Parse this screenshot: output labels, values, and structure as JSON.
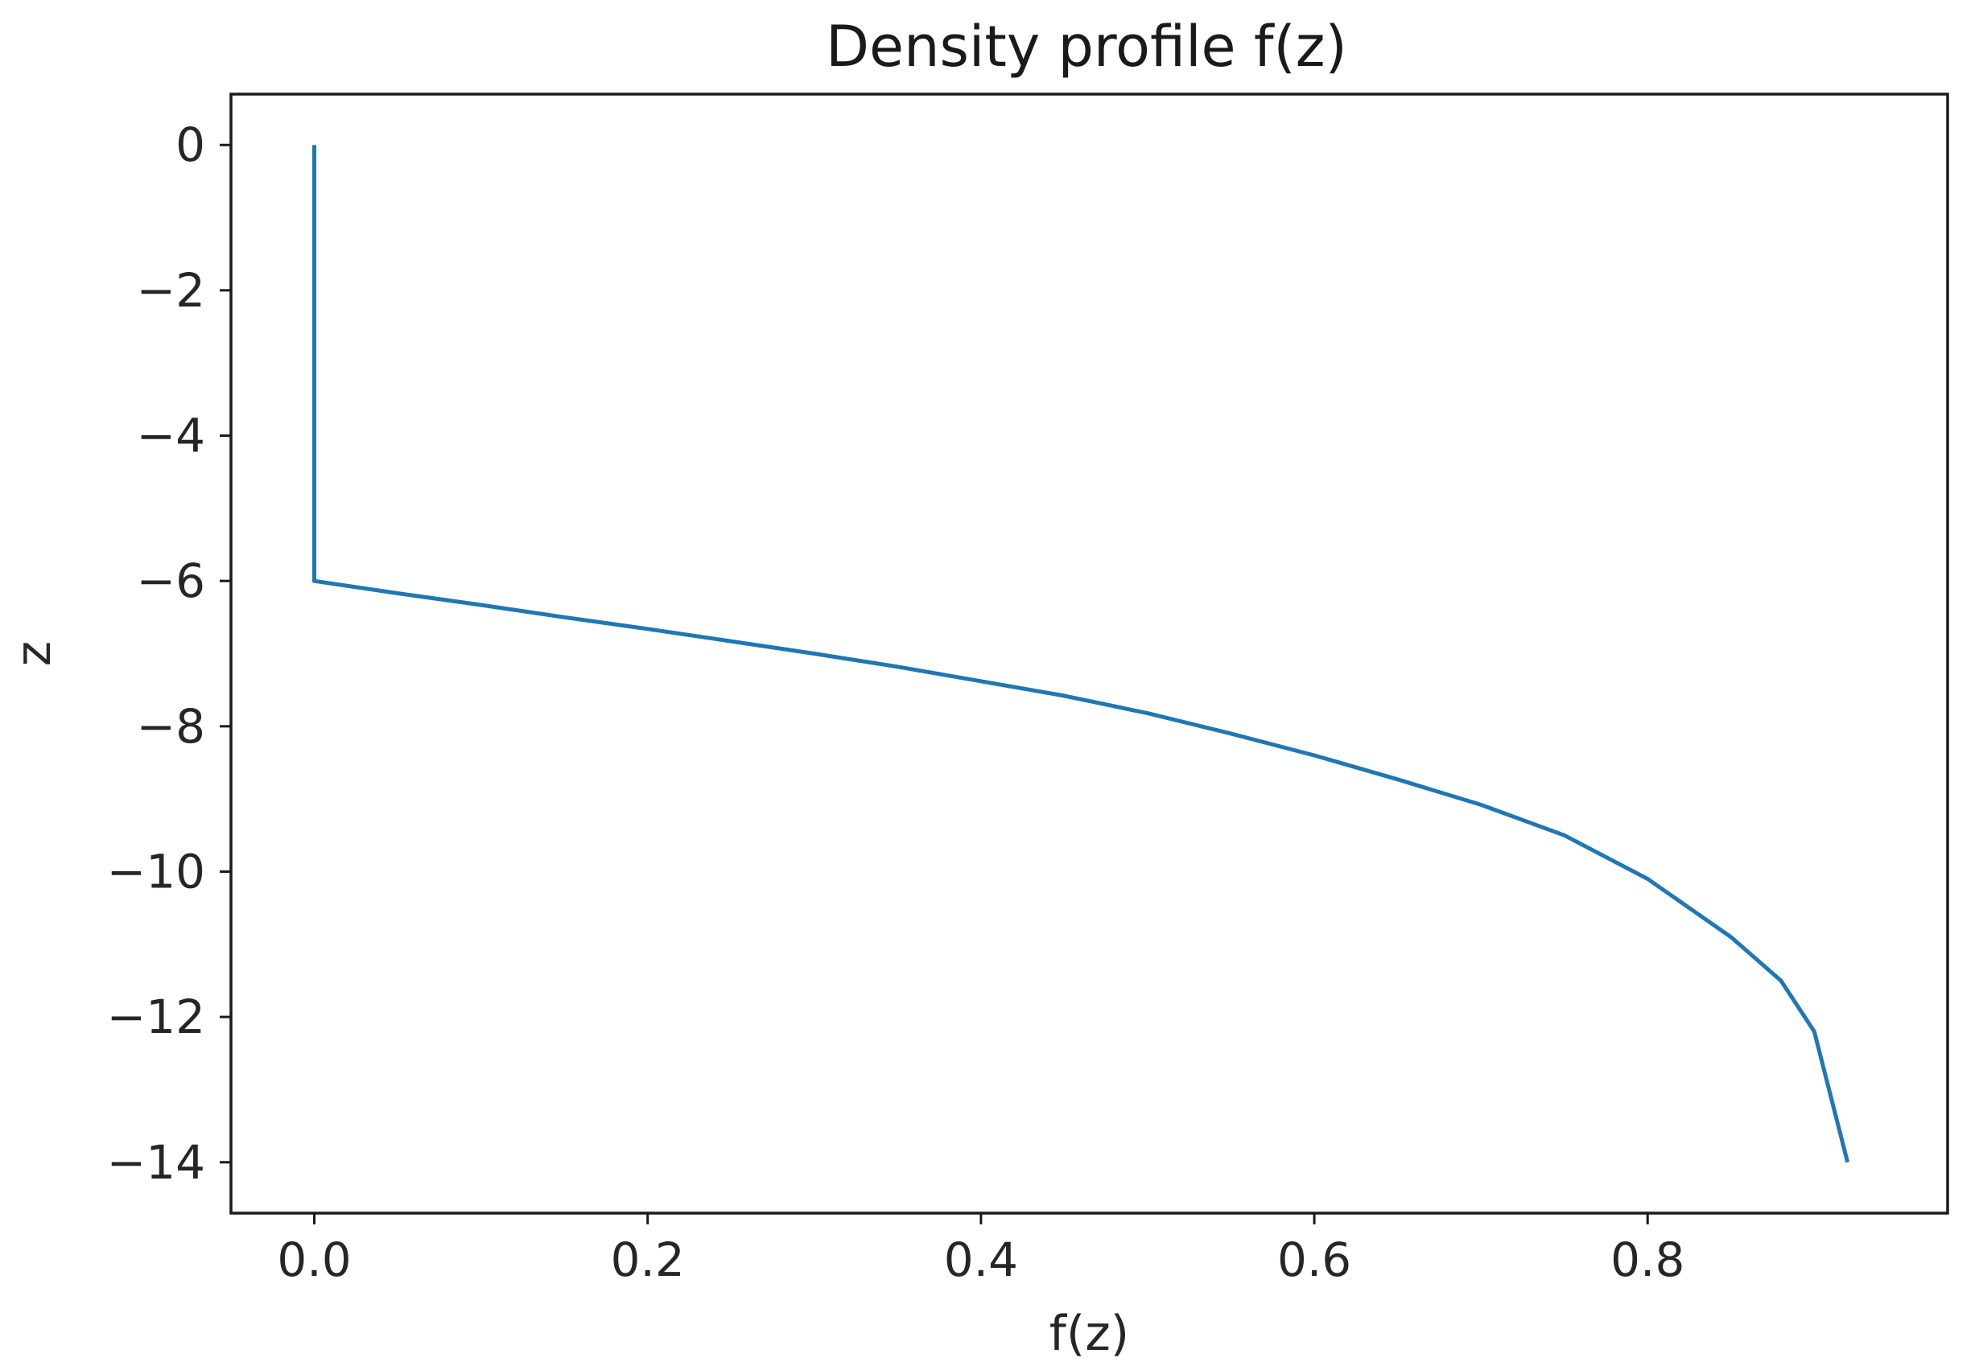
{
  "chart_data": {
    "type": "line",
    "title": "Density profile f(z)",
    "xlabel": "f(z)",
    "ylabel": "z",
    "xlim": [
      -0.05,
      0.98
    ],
    "ylim": [
      -14.7,
      0.7
    ],
    "xticks": [
      0.0,
      0.2,
      0.4,
      0.6,
      0.8
    ],
    "xtick_labels": [
      "0.0",
      "0.2",
      "0.4",
      "0.6",
      "0.8"
    ],
    "yticks": [
      0,
      -2,
      -4,
      -6,
      -8,
      -10,
      -12,
      -14
    ],
    "ytick_labels": [
      "0",
      "−2",
      "−4",
      "−6",
      "−8",
      "−10",
      "−12",
      "−14"
    ],
    "grid": false,
    "legend": "none",
    "series": [
      {
        "color": "#1f77b4",
        "x": [
          0.0,
          0.0,
          0.05,
          0.1,
          0.15,
          0.2,
          0.25,
          0.3,
          0.35,
          0.4,
          0.45,
          0.5,
          0.55,
          0.6,
          0.65,
          0.7,
          0.75,
          0.8,
          0.85,
          0.88,
          0.9,
          0.92
        ],
        "y": [
          0,
          -6,
          -6.17,
          -6.33,
          -6.5,
          -6.66,
          -6.83,
          -7.0,
          -7.18,
          -7.38,
          -7.58,
          -7.82,
          -8.1,
          -8.4,
          -8.73,
          -9.08,
          -9.5,
          -10.1,
          -10.9,
          -11.5,
          -12.2,
          -14.0
        ]
      }
    ]
  }
}
